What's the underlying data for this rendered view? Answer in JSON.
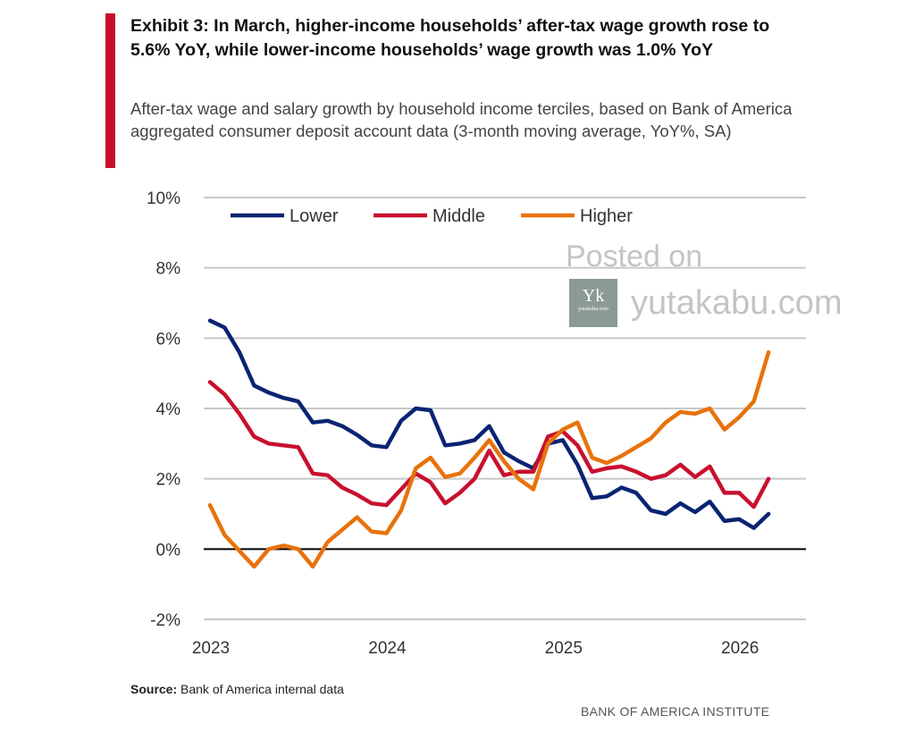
{
  "title": "Exhibit 3: In March, higher-income households’ after-tax wage growth rose to 5.6% YoY, while lower-income households’ wage growth was 1.0% YoY",
  "subtitle": "After-tax wage and salary growth by household income terciles, based on Bank of America aggregated consumer deposit account data (3-month moving average, YoY%, SA)",
  "source_label": "Source:",
  "source_text": " Bank of America internal data",
  "brand": "BANK OF AMERICA INSTITUTE",
  "watermark": {
    "line1": "Posted on",
    "site": "yutakabu.com",
    "logo_letter": "Yk",
    "logo_small": "yutakabu.com"
  },
  "colors": {
    "accent": "#c8102e",
    "lower": "#0a2472",
    "middle": "#c8102e",
    "higher": "#e8720c"
  },
  "chart_data": {
    "type": "line",
    "title": "After-tax wage and salary growth by household income terciles",
    "xlabel": "",
    "ylabel": "YoY%",
    "ylim": [
      -2,
      10
    ],
    "yticks": [
      -2,
      0,
      2,
      4,
      6,
      8,
      10
    ],
    "ytick_labels": [
      "-2%",
      "0%",
      "2%",
      "4%",
      "6%",
      "8%",
      "10%"
    ],
    "xticks": [
      "2023",
      "2024",
      "2025",
      "2026"
    ],
    "x_start": "2023-01",
    "x_end": "2026-03",
    "frequency": "monthly",
    "grid": true,
    "legend_position": "top-left",
    "series": [
      {
        "name": "Lower",
        "color": "#0a2472",
        "values": [
          6.5,
          6.3,
          5.6,
          4.65,
          4.45,
          4.3,
          4.2,
          3.6,
          3.65,
          3.5,
          3.25,
          2.95,
          2.9,
          3.65,
          4.0,
          3.95,
          2.95,
          3.0,
          3.1,
          3.5,
          2.75,
          2.5,
          2.3,
          3.0,
          3.1,
          2.4,
          1.45,
          1.5,
          1.75,
          1.6,
          1.1,
          1.0,
          1.3,
          1.05,
          1.35,
          0.8,
          0.85,
          0.6,
          1.0
        ]
      },
      {
        "name": "Middle",
        "color": "#c8102e",
        "values": [
          4.75,
          4.4,
          3.85,
          3.2,
          3.0,
          2.95,
          2.9,
          2.15,
          2.1,
          1.75,
          1.55,
          1.3,
          1.25,
          1.7,
          2.15,
          1.9,
          1.3,
          1.6,
          2.0,
          2.8,
          2.1,
          2.2,
          2.2,
          3.2,
          3.35,
          2.95,
          2.2,
          2.3,
          2.35,
          2.2,
          2.0,
          2.1,
          2.4,
          2.05,
          2.35,
          1.6,
          1.6,
          1.2,
          2.0
        ]
      },
      {
        "name": "Higher",
        "color": "#e8720c",
        "values": [
          1.25,
          0.4,
          -0.05,
          -0.5,
          0.0,
          0.1,
          0.0,
          -0.5,
          0.2,
          0.55,
          0.9,
          0.5,
          0.45,
          1.1,
          2.3,
          2.6,
          2.05,
          2.15,
          2.6,
          3.1,
          2.5,
          2.0,
          1.7,
          3.0,
          3.4,
          3.6,
          2.6,
          2.45,
          2.65,
          2.9,
          3.15,
          3.6,
          3.9,
          3.85,
          4.0,
          3.4,
          3.75,
          4.2,
          5.6
        ]
      }
    ]
  }
}
